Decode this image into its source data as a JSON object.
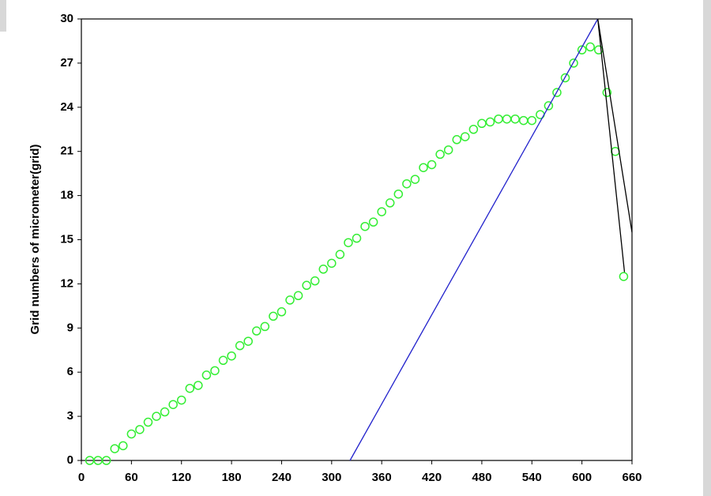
{
  "chart_data": {
    "type": "scatter",
    "y_label": "Grid numbers of micrometer(grid)",
    "xlim": [
      0,
      660
    ],
    "ylim": [
      0,
      30
    ],
    "xticks": [
      0,
      60,
      120,
      180,
      240,
      300,
      360,
      420,
      480,
      540,
      600,
      660
    ],
    "yticks": [
      0,
      3,
      6,
      9,
      12,
      15,
      18,
      21,
      24,
      27,
      30
    ],
    "series": [
      {
        "type": "scatter",
        "color": "#33ee33",
        "x": [
          10,
          20,
          30,
          40,
          50,
          60,
          70,
          80,
          90,
          100,
          110,
          120,
          130,
          140,
          150,
          160,
          170,
          180,
          190,
          200,
          210,
          220,
          230,
          240,
          250,
          260,
          270,
          280,
          290,
          300,
          310,
          320,
          330,
          340,
          350,
          360,
          370,
          380,
          390,
          400,
          410,
          420,
          430,
          440,
          450,
          460,
          470,
          480,
          490,
          500,
          510,
          520,
          530,
          540,
          550,
          560,
          570,
          580,
          590,
          600,
          610,
          620,
          630,
          640,
          650
        ],
        "values": [
          0,
          0,
          0,
          0.8,
          1.0,
          1.8,
          2.1,
          2.6,
          3.0,
          3.3,
          3.8,
          4.1,
          4.9,
          5.1,
          5.8,
          6.1,
          6.8,
          7.1,
          7.8,
          8.1,
          8.8,
          9.1,
          9.8,
          10.1,
          10.9,
          11.2,
          11.9,
          12.2,
          13.0,
          13.4,
          14.0,
          14.8,
          15.1,
          15.9,
          16.2,
          16.9,
          17.5,
          18.1,
          18.8,
          19.1,
          19.9,
          20.1,
          20.8,
          21.1,
          21.8,
          22.0,
          22.5,
          22.9,
          23.0,
          23.2,
          23.2,
          23.2,
          23.1,
          23.1,
          23.5,
          24.1,
          25.0,
          26.0,
          27.0,
          27.9,
          28.1,
          27.9,
          25.0,
          21.0,
          12.5
        ]
      },
      {
        "type": "line",
        "color": "#2222cc",
        "x": [
          322,
          619
        ],
        "values": [
          0,
          30
        ]
      },
      {
        "type": "line",
        "color": "#000000",
        "x": [
          619,
          660
        ],
        "values": [
          30,
          15.5
        ]
      },
      {
        "type": "line",
        "color": "#000000",
        "x": [
          619,
          651
        ],
        "values": [
          30,
          12.8
        ]
      }
    ]
  }
}
